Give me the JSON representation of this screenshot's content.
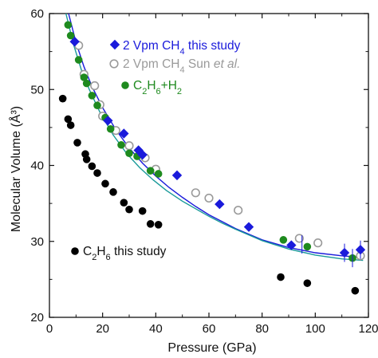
{
  "chart_data": {
    "type": "scatter",
    "xlabel": "Pressure (GPa)",
    "ylabel": "Molecular Volume (Å³)",
    "xlim": [
      0,
      120
    ],
    "ylim": [
      20,
      60
    ],
    "xticks": [
      0,
      20,
      40,
      60,
      80,
      100,
      120
    ],
    "yticks": [
      20,
      30,
      40,
      50,
      60
    ],
    "grid": false,
    "colors": {
      "ch4_this_study": "#1a1adb",
      "ch4_sun": "#9a9a9a",
      "c2h6_h2": "#1e8a1e",
      "c2h6": "#000000",
      "fit_blue": "#1a1adb",
      "fit_teal": "#1a9a9a"
    },
    "legend": {
      "ch4_this_study": "2 Vpm CH$_4$ this study",
      "ch4_sun": "2 Vpm CH$_4$ Sun $et\\ al.$",
      "c2h6_h2": "C$_2$H$_6$+H$_2$",
      "c2h6": "C$_2$H$_6$ this study"
    },
    "series": [
      {
        "name": "2 Vpm CH4 this study",
        "marker": "diamond",
        "points": [
          [
            9.5,
            56.3
          ],
          [
            22,
            45.9
          ],
          [
            28,
            44.2
          ],
          [
            33.5,
            42.0
          ],
          [
            35,
            41.4
          ],
          [
            48,
            38.7
          ],
          [
            64,
            34.9
          ],
          [
            75,
            31.9
          ],
          [
            91,
            29.5
          ],
          [
            111,
            28.5
          ],
          [
            117,
            28.9
          ]
        ]
      },
      {
        "name": "2 Vpm CH4 Sun et al.",
        "marker": "open-circle",
        "points": [
          [
            11,
            55.8
          ],
          [
            13,
            52.0
          ],
          [
            17,
            50.5
          ],
          [
            19,
            48.0
          ],
          [
            20,
            46.5
          ],
          [
            25,
            44.6
          ],
          [
            30,
            42.6
          ],
          [
            36,
            41.0
          ],
          [
            40,
            39.5
          ],
          [
            55,
            36.4
          ],
          [
            60,
            35.7
          ],
          [
            71,
            34.1
          ],
          [
            94,
            30.4
          ],
          [
            101,
            29.8
          ],
          [
            117,
            28.1
          ]
        ]
      },
      {
        "name": "C2H6+H2",
        "marker": "filled-circle",
        "points": [
          [
            7,
            58.5
          ],
          [
            8,
            57.1
          ],
          [
            11,
            53.9
          ],
          [
            13,
            51.6
          ],
          [
            14,
            50.8
          ],
          [
            16,
            49.2
          ],
          [
            18,
            47.9
          ],
          [
            21,
            46.3
          ],
          [
            23,
            44.8
          ],
          [
            27,
            42.7
          ],
          [
            30,
            41.6
          ],
          [
            33,
            41.2
          ],
          [
            38,
            39.3
          ],
          [
            41,
            38.9
          ],
          [
            88,
            30.2
          ],
          [
            97,
            29.3
          ],
          [
            114,
            27.8
          ]
        ]
      },
      {
        "name": "C2H6 this study",
        "marker": "filled-circle",
        "points": [
          [
            5,
            48.8
          ],
          [
            7,
            46.1
          ],
          [
            8,
            45.3
          ],
          [
            10.5,
            43.0
          ],
          [
            13.5,
            41.5
          ],
          [
            14,
            40.8
          ],
          [
            16,
            39.9
          ],
          [
            18,
            39.0
          ],
          [
            21,
            37.6
          ],
          [
            24,
            36.5
          ],
          [
            28,
            35.1
          ],
          [
            30,
            34.2
          ],
          [
            35,
            34.0
          ],
          [
            38,
            32.3
          ],
          [
            41,
            32.2
          ],
          [
            87,
            25.3
          ],
          [
            97,
            24.5
          ],
          [
            115,
            23.5
          ]
        ]
      }
    ],
    "fits": [
      {
        "name": "fit-ch4",
        "points": [
          [
            7.2,
            60
          ],
          [
            10,
            56.2
          ],
          [
            13,
            53.0
          ],
          [
            16,
            50.4
          ],
          [
            20,
            47.6
          ],
          [
            25,
            44.7
          ],
          [
            30,
            42.3
          ],
          [
            35,
            40.3
          ],
          [
            40,
            38.6
          ],
          [
            45,
            37.1
          ],
          [
            50,
            35.8
          ],
          [
            55,
            34.6
          ],
          [
            60,
            33.5
          ],
          [
            65,
            32.6
          ],
          [
            70,
            31.7
          ],
          [
            80,
            30.2
          ],
          [
            90,
            29.2
          ],
          [
            100,
            28.5
          ],
          [
            110,
            28.1
          ],
          [
            118,
            27.9
          ]
        ]
      },
      {
        "name": "fit-c2h6-h2",
        "points": [
          [
            6.2,
            60
          ],
          [
            9,
            56.0
          ],
          [
            12,
            52.6
          ],
          [
            15,
            50.0
          ],
          [
            19,
            47.0
          ],
          [
            24,
            44.0
          ],
          [
            29,
            41.6
          ],
          [
            34,
            39.7
          ],
          [
            39,
            38.1
          ],
          [
            44,
            36.7
          ],
          [
            50,
            35.3
          ],
          [
            55,
            34.3
          ],
          [
            60,
            33.3
          ],
          [
            65,
            32.4
          ],
          [
            70,
            31.6
          ],
          [
            80,
            30.1
          ],
          [
            90,
            29.0
          ],
          [
            100,
            28.2
          ],
          [
            110,
            27.7
          ],
          [
            118,
            27.5
          ]
        ]
      }
    ]
  }
}
